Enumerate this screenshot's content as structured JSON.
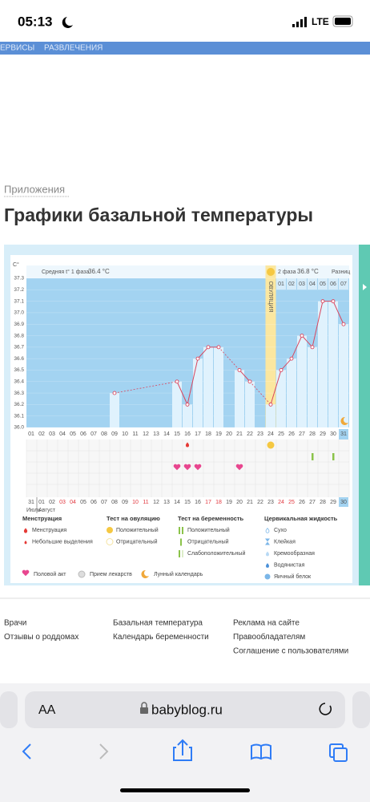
{
  "status_bar": {
    "time": "05:13",
    "network": "LTE"
  },
  "nav": {
    "items": [
      "ЕРВИСЫ",
      "РАЗВЛЕЧЕНИЯ"
    ]
  },
  "breadcrumb": "Приложения",
  "title": "Графики базальной температуры",
  "chart_data": {
    "type": "line",
    "y_unit": "С°",
    "categories": [
      "01",
      "02",
      "03",
      "04",
      "05",
      "06",
      "07",
      "08",
      "09",
      "10",
      "11",
      "12",
      "13",
      "14",
      "15",
      "16",
      "17",
      "18",
      "19",
      "20",
      "21",
      "22",
      "23",
      "24",
      "25",
      "26",
      "27",
      "28",
      "29",
      "30",
      "31"
    ],
    "dates": [
      "31",
      "01",
      "02",
      "03",
      "04",
      "05",
      "06",
      "07",
      "08",
      "09",
      "10",
      "11",
      "12",
      "13",
      "14",
      "15",
      "16",
      "17",
      "18",
      "19",
      "20",
      "21",
      "22",
      "23",
      "24",
      "25",
      "26",
      "27",
      "28",
      "29",
      "30"
    ],
    "weekend_dates": [
      "03",
      "04",
      "10",
      "11",
      "17",
      "18",
      "24",
      "25"
    ],
    "months": [
      "Июль",
      "Август"
    ],
    "phase1": {
      "label": "Средняя t° 1 фаза",
      "value": "36.4 °С"
    },
    "phase2": {
      "label": "2 фаза",
      "value": "36.8 °С"
    },
    "difference": "Разниц",
    "phase2_days": [
      "01",
      "02",
      "03",
      "04",
      "05",
      "06",
      "07"
    ],
    "ovulation": {
      "label": "ОВУЛЯЦИЯ",
      "day": "24"
    },
    "color": "#d9475f",
    "values": [
      null,
      null,
      null,
      null,
      null,
      null,
      null,
      null,
      36.3,
      null,
      null,
      null,
      null,
      null,
      36.4,
      36.2,
      36.6,
      36.7,
      36.7,
      null,
      36.5,
      36.4,
      null,
      36.2,
      36.5,
      36.6,
      36.8,
      36.7,
      37.1,
      37.1,
      36.9
    ],
    "ylim": [
      36.0,
      37.3
    ],
    "yticks": [
      {
        "value": 36,
        "label": "36.0"
      },
      36.1,
      36.2,
      36.3,
      36.4,
      36.5,
      36.6,
      36.7,
      36.8,
      36.9,
      {
        "value": 37,
        "label": "37.0"
      },
      37.1,
      37.2,
      37.3
    ],
    "grid": true,
    "events": {
      "spotting": [
        "16"
      ],
      "intercourse": [
        "15",
        "16",
        "17",
        "21"
      ],
      "ovulation_positive": [
        "24"
      ],
      "pregnancy_test": [
        "28",
        "30"
      ],
      "moon": [
        "31"
      ]
    },
    "legend": {
      "groups": [
        {
          "title": "Менструация",
          "items": [
            "Менструация",
            "Небольшие выделения"
          ]
        },
        {
          "title": "Тест на овуляцию",
          "items": [
            "Положительный",
            "Отрицательный"
          ]
        },
        {
          "title": "Тест на беременность",
          "items": [
            "Положительный",
            "Отрицательный",
            "Слабоположительный"
          ]
        },
        {
          "title": "Цервикальная жидкость",
          "items": [
            "Сухо",
            "Клейкая",
            "Кремообразная",
            "Водянистая",
            "Яичный белок"
          ]
        }
      ],
      "extra": [
        "Половой акт",
        "Прием лекарств",
        "Лунный календарь"
      ]
    }
  },
  "footer": {
    "columns": [
      [
        "Врачи",
        "Отзывы о роддомах"
      ],
      [
        "Базальная температура",
        "Календарь беременности"
      ],
      [
        "Реклама на сайте",
        "Правообладателям",
        "Соглашение с пользователями"
      ]
    ]
  },
  "browser": {
    "text_size": "AA",
    "url": "babyblog.ru"
  }
}
